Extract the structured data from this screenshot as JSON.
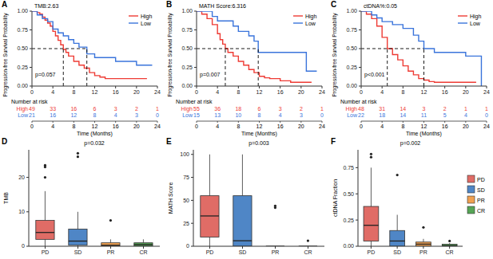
{
  "chart_data": [
    {
      "type": "line",
      "panel": "A",
      "annotations": [
        "TMB:2.63",
        "p=0.057"
      ],
      "x_label": "Time (Months)",
      "y_label": "Progression-free Survival Probability",
      "line_style": "step",
      "legend": "top right",
      "median_level": 0.5,
      "xlim": [
        0,
        24
      ],
      "xticks": [
        0,
        4,
        8,
        12,
        16,
        20,
        24
      ],
      "ylim": [
        0,
        1
      ],
      "yticks": [
        {
          "value": 0,
          "label": "0.00"
        },
        0.25,
        {
          "value": 0.5,
          "label": "0.50"
        },
        0.75,
        {
          "value": 1,
          "label": "1.00"
        }
      ],
      "series": [
        {
          "name": "High",
          "color": "#EE3B34",
          "x": [
            0,
            1,
            1.5,
            2,
            2.5,
            3,
            3.5,
            4,
            4.5,
            5,
            5.5,
            6,
            6.5,
            7,
            8,
            9,
            10,
            11,
            12,
            13,
            14,
            16,
            22
          ],
          "values": [
            1,
            0.98,
            0.96,
            0.92,
            0.88,
            0.84,
            0.8,
            0.73,
            0.67,
            0.61,
            0.55,
            0.49,
            0.45,
            0.4,
            0.33,
            0.28,
            0.24,
            0.18,
            0.14,
            0.12,
            0.1,
            0.1,
            0.1
          ]
        },
        {
          "name": "Low",
          "color": "#3A74DB",
          "x": [
            0,
            1,
            2,
            3,
            4,
            5,
            6,
            7,
            8,
            9,
            10.5,
            12,
            14,
            16,
            18,
            20,
            22,
            23
          ],
          "values": [
            1,
            0.95,
            0.9,
            0.86,
            0.76,
            0.71,
            0.67,
            0.62,
            0.57,
            0.52,
            0.43,
            0.38,
            0.38,
            0.33,
            0.33,
            0.28,
            0.28,
            0.28
          ]
        }
      ],
      "risk_table": {
        "title": "Number at risk",
        "rows": [
          {
            "name": "High",
            "values": [
              49,
              33,
              16,
              6,
              3,
              2,
              1
            ]
          },
          {
            "name": "Low",
            "values": [
              21,
              16,
              12,
              8,
              4,
              3,
              0
            ]
          }
        ]
      }
    },
    {
      "type": "line",
      "panel": "B",
      "annotations": [
        "MATH Score:6.316",
        "p=0.007"
      ],
      "x_label": "Time (Months)",
      "y_label": "Progression-free Survival Probability",
      "line_style": "step",
      "legend": "top right",
      "median_level": 0.5,
      "xlim": [
        0,
        24
      ],
      "xticks": [
        0,
        4,
        8,
        12,
        16,
        20,
        24
      ],
      "ylim": [
        0,
        1
      ],
      "yticks": [
        {
          "value": 0,
          "label": "0.00"
        },
        0.25,
        {
          "value": 0.5,
          "label": "0.50"
        },
        0.75,
        {
          "value": 1,
          "label": "1.00"
        }
      ],
      "series": [
        {
          "name": "High",
          "color": "#EE3B34",
          "x": [
            0,
            1,
            2,
            3,
            4,
            4.5,
            5,
            5.5,
            6,
            7,
            8,
            9,
            10,
            11,
            12,
            13,
            14,
            16,
            18,
            20,
            22
          ],
          "values": [
            1,
            0.96,
            0.9,
            0.82,
            0.7,
            0.62,
            0.56,
            0.5,
            0.45,
            0.4,
            0.33,
            0.28,
            0.22,
            0.18,
            0.13,
            0.11,
            0.1,
            0.07,
            0.05,
            0.05,
            0.05
          ]
        },
        {
          "name": "Low",
          "color": "#3A74DB",
          "x": [
            0,
            2,
            3,
            4,
            6,
            7,
            8,
            10,
            11,
            11.8,
            14,
            16,
            20,
            21,
            23
          ],
          "values": [
            1,
            1,
            0.93,
            0.87,
            0.87,
            0.8,
            0.73,
            0.67,
            0.6,
            0.45,
            0.45,
            0.45,
            0.45,
            0.2,
            0.2
          ]
        }
      ],
      "risk_table": {
        "title": "Number at risk",
        "rows": [
          {
            "name": "High",
            "values": [
              55,
              36,
              18,
              6,
              3,
              2,
              1
            ]
          },
          {
            "name": "Low",
            "values": [
              15,
              13,
              10,
              8,
              4,
              3,
              0
            ]
          }
        ]
      }
    },
    {
      "type": "line",
      "panel": "C",
      "annotations": [
        "ctDNA%:0.05",
        "p<0.001"
      ],
      "x_label": "Time (Months)",
      "y_label": "Progression-free Survival Probability",
      "line_style": "step",
      "legend": "top right",
      "median_level": 0.5,
      "xlim": [
        0,
        24
      ],
      "xticks": [
        0,
        4,
        8,
        12,
        16,
        20,
        24
      ],
      "ylim": [
        0,
        1
      ],
      "yticks": [
        {
          "value": 0,
          "label": "0.00"
        },
        0.25,
        {
          "value": 0.5,
          "label": "0.50"
        },
        0.75,
        {
          "value": 1,
          "label": "1.00"
        }
      ],
      "series": [
        {
          "name": "High",
          "color": "#EE3B34",
          "x": [
            0,
            1,
            2,
            3,
            4,
            5,
            6,
            7,
            8,
            9,
            10,
            11,
            12,
            13,
            14,
            16,
            18,
            20,
            22
          ],
          "values": [
            1,
            0.96,
            0.9,
            0.8,
            0.65,
            0.5,
            0.42,
            0.35,
            0.27,
            0.2,
            0.15,
            0.1,
            0.08,
            0.06,
            0.05,
            0.05,
            0.05,
            0.05,
            0.05
          ]
        },
        {
          "name": "Low",
          "color": "#3A74DB",
          "x": [
            0,
            2,
            3,
            4,
            6,
            8,
            10,
            11,
            12,
            14,
            16,
            20,
            23
          ],
          "values": [
            1,
            0.95,
            0.91,
            0.86,
            0.82,
            0.77,
            0.68,
            0.6,
            0.5,
            0.45,
            0.45,
            0.4,
            0
          ]
        }
      ],
      "risk_table": {
        "title": "Number at risk",
        "rows": [
          {
            "name": "High",
            "values": [
              48,
              31,
              14,
              3,
              2,
              1,
              1
            ]
          },
          {
            "name": "Low",
            "values": [
              22,
              18,
              14,
              11,
              5,
              4,
              0
            ]
          }
        ]
      }
    },
    {
      "type": "box",
      "panel": "D",
      "title": "p=0.032",
      "y_label": "TMB",
      "categories": [
        "PD",
        "SD",
        "PR",
        "CR"
      ],
      "colors": [
        "#E06C66",
        "#4F86C6",
        "#F0A050",
        "#56A556"
      ],
      "ylim": [
        0,
        28
      ],
      "yticks": [
        0,
        10,
        20
      ],
      "boxes": [
        {
          "min": 0,
          "q1": 2,
          "median": 4,
          "q3": 7.5,
          "max": 16,
          "outliers": [
            20,
            23,
            23.5
          ]
        },
        {
          "min": 0,
          "q1": 0.3,
          "median": 1.5,
          "q3": 5,
          "max": 10,
          "outliers": [
            26,
            27
          ]
        },
        {
          "min": 0,
          "q1": 0,
          "median": 0.3,
          "q3": 1,
          "max": 2,
          "outliers": [
            7.5
          ]
        },
        {
          "min": 0,
          "q1": 0,
          "median": 0.5,
          "q3": 1,
          "max": 2,
          "outliers": []
        }
      ]
    },
    {
      "type": "box",
      "panel": "E",
      "title": "p=0.003",
      "y_label": "MATH Score",
      "categories": [
        "PD",
        "SD",
        "PR",
        "CR"
      ],
      "colors": [
        "#E06C66",
        "#4F86C6",
        "#F0A050",
        "#56A556"
      ],
      "ylim": [
        0,
        105
      ],
      "yticks": [
        0,
        25,
        50,
        75,
        100
      ],
      "boxes": [
        {
          "min": 0,
          "q1": 10,
          "median": 33,
          "q3": 55,
          "max": 100,
          "outliers": []
        },
        {
          "min": 0,
          "q1": 0,
          "median": 6,
          "q3": 55,
          "max": 100,
          "outliers": []
        },
        {
          "min": 0,
          "q1": 0,
          "median": 0,
          "q3": 0,
          "max": 0,
          "outliers": [
            42,
            44
          ]
        },
        {
          "min": 0,
          "q1": 0,
          "median": 0,
          "q3": 0,
          "max": 0,
          "outliers": [
            6
          ]
        }
      ]
    },
    {
      "type": "box",
      "panel": "F",
      "title": "p=0.002",
      "y_label": "ctDNA Fraction",
      "legend": "right",
      "categories": [
        "PD",
        "SD",
        "PR",
        "CR"
      ],
      "colors": [
        "#E06C66",
        "#4F86C6",
        "#F0A050",
        "#56A556"
      ],
      "ylim": [
        0,
        0.92
      ],
      "yticks": [
        {
          "value": 0,
          "label": "0.00"
        },
        0.25,
        {
          "value": 0.5,
          "label": "0.50"
        },
        0.75
      ],
      "boxes": [
        {
          "min": 0,
          "q1": 0.05,
          "median": 0.2,
          "q3": 0.38,
          "max": 0.75,
          "outliers": [
            0.85,
            0.88
          ]
        },
        {
          "min": 0,
          "q1": 0,
          "median": 0.05,
          "q3": 0.15,
          "max": 0.3,
          "outliers": [
            0.68
          ]
        },
        {
          "min": 0,
          "q1": 0,
          "median": 0.02,
          "q3": 0.04,
          "max": 0.07,
          "outliers": [
            0.18
          ]
        },
        {
          "min": 0,
          "q1": 0,
          "median": 0.005,
          "q3": 0.02,
          "max": 0.03,
          "outliers": [
            0.05
          ]
        }
      ]
    }
  ]
}
